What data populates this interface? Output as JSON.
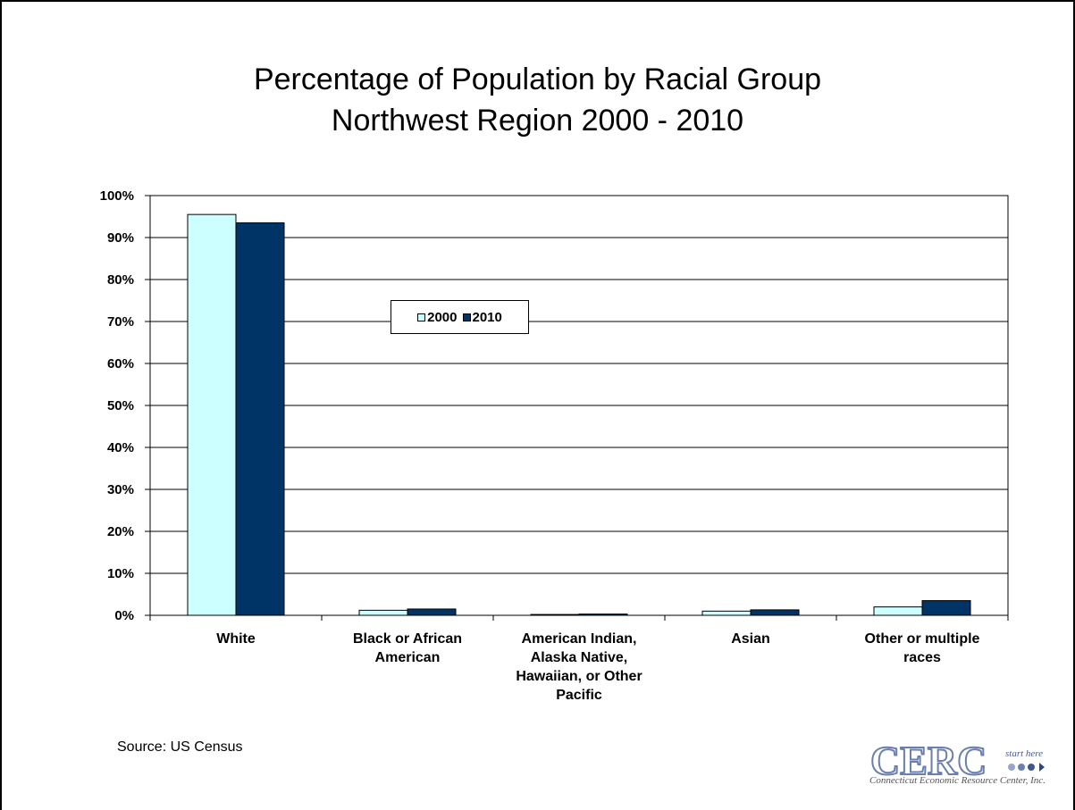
{
  "title_line1": "Percentage of Population by Racial Group",
  "title_line2": "Northwest Region 2000 - 2010",
  "source": "Source:  US Census",
  "logo": {
    "letters": "CERC",
    "tagline": "start here",
    "caption": "Connecticut Economic Resource Center, Inc."
  },
  "colors": {
    "series_2000": "#CCFFFF",
    "series_2010": "#003366"
  },
  "chart_data": {
    "type": "bar",
    "title": "Percentage of Population by Racial Group Northwest Region 2000 - 2010",
    "categories": [
      "White",
      "Black or African American",
      "American Indian, Alaska Native, Hawaiian, or Other Pacific",
      "Asian",
      "Other or multiple races"
    ],
    "series": [
      {
        "name": "2000",
        "values": [
          95.5,
          1.2,
          0.2,
          1.0,
          2.0
        ]
      },
      {
        "name": "2010",
        "values": [
          93.5,
          1.5,
          0.3,
          1.3,
          3.5
        ]
      }
    ],
    "ylim": [
      0,
      100
    ],
    "yticks": [
      "0%",
      "10%",
      "20%",
      "30%",
      "40%",
      "50%",
      "60%",
      "70%",
      "80%",
      "90%",
      "100%"
    ],
    "grid": true,
    "legend_position": "top-center"
  }
}
